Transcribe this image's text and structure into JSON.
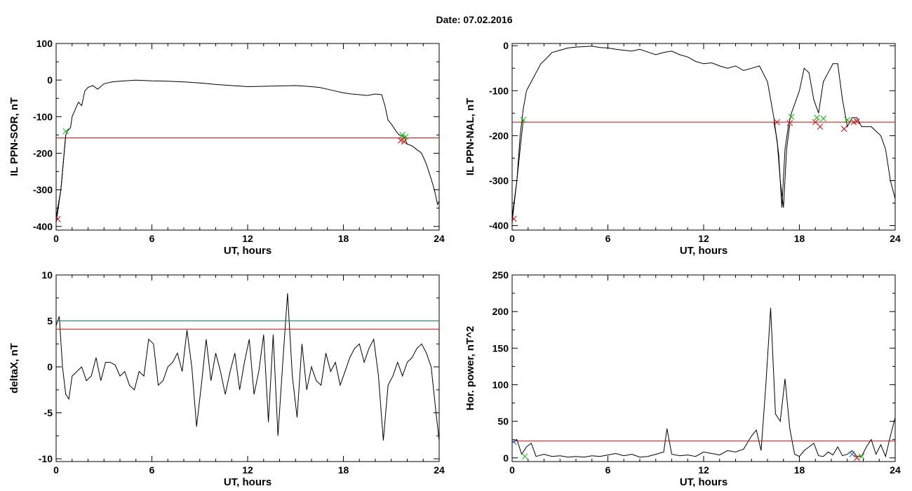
{
  "title": "Date:  07.02.2016",
  "chart_data": [
    {
      "type": "line",
      "xlabel": "UT, hours",
      "ylabel": "IL PPN-SOR, nT",
      "xlim": [
        0,
        24
      ],
      "ylim": [
        -410,
        100
      ],
      "xticks": [
        0,
        6,
        12,
        18,
        24
      ],
      "yticks": [
        100,
        0,
        -100,
        -200,
        -300,
        -400
      ],
      "xtick_labels": [
        "0",
        "6",
        "12",
        "18",
        "24"
      ],
      "ytick_labels": [
        "100",
        "0",
        "-100",
        "-200",
        "-300",
        "-400"
      ],
      "hlines": [
        {
          "y": -158,
          "color": "#e00000"
        }
      ],
      "series": [
        {
          "color": "#000000",
          "x": [
            0,
            0.3,
            0.5,
            0.6,
            0.7,
            0.9,
            1.0,
            1.2,
            1.4,
            1.6,
            1.8,
            2.0,
            2.3,
            2.6,
            3.0,
            3.5,
            4.0,
            5.0,
            6.0,
            7.0,
            8.0,
            9.0,
            10.0,
            11.0,
            12.0,
            13.0,
            14.0,
            15.0,
            16.0,
            16.5,
            17.0,
            17.5,
            18.0,
            18.5,
            19.0,
            19.5,
            20.0,
            20.4,
            20.6,
            20.8,
            21.0,
            21.3,
            21.5,
            21.8,
            22.0,
            22.3,
            22.6,
            22.9,
            23.2,
            23.5,
            23.7,
            23.9,
            24.0
          ],
          "y": [
            -375,
            -300,
            -200,
            -150,
            -140,
            -130,
            -100,
            -80,
            -60,
            -70,
            -30,
            -20,
            -15,
            -25,
            -10,
            -5,
            -3,
            0,
            -2,
            -3,
            -5,
            -8,
            -12,
            -15,
            -18,
            -17,
            -16,
            -15,
            -18,
            -20,
            -25,
            -30,
            -35,
            -38,
            -40,
            -42,
            -38,
            -40,
            -70,
            -110,
            -120,
            -140,
            -150,
            -155,
            -175,
            -180,
            -190,
            -200,
            -230,
            -270,
            -300,
            -340,
            -330
          ]
        },
        {
          "color": "#1060e0",
          "x": [
            0,
            0.1,
            0.2,
            0.3,
            0.4,
            0.5,
            0.6
          ],
          "y": [
            -390,
            -360,
            -330,
            -300,
            -250,
            -200,
            -150
          ]
        }
      ],
      "markers": [
        {
          "x": 0.1,
          "y": -380,
          "color": "#e00000"
        },
        {
          "x": 0.6,
          "y": -140,
          "color": "#00c000"
        },
        {
          "x": 21.6,
          "y": -165,
          "color": "#e00000"
        },
        {
          "x": 21.8,
          "y": -168,
          "color": "#e00000"
        },
        {
          "x": 21.7,
          "y": -150,
          "color": "#00c000"
        },
        {
          "x": 21.9,
          "y": -155,
          "color": "#00c000"
        }
      ]
    },
    {
      "type": "line",
      "xlabel": "UT, hours",
      "ylabel": "IL PPN-NAL, nT",
      "xlim": [
        0,
        24
      ],
      "ylim": [
        -410,
        5
      ],
      "xticks": [
        0,
        6,
        12,
        18,
        24
      ],
      "yticks": [
        0,
        -100,
        -200,
        -300,
        -400
      ],
      "xtick_labels": [
        "0",
        "6",
        "12",
        "18",
        "24"
      ],
      "ytick_labels": [
        "0",
        "-100",
        "-200",
        "-300",
        "-400"
      ],
      "hlines": [
        {
          "y": -170,
          "color": "#e00000"
        }
      ],
      "series": [
        {
          "color": "#000000",
          "x": [
            0,
            0.3,
            0.5,
            0.7,
            0.9,
            1.2,
            1.5,
            1.8,
            2.1,
            2.5,
            3.0,
            3.5,
            4.0,
            4.5,
            5.0,
            5.5,
            6.0,
            6.5,
            7.0,
            7.5,
            8.0,
            8.5,
            9.0,
            9.5,
            10.0,
            10.5,
            11.0,
            11.5,
            12.0,
            12.5,
            13.0,
            13.5,
            14.0,
            14.5,
            15.0,
            15.5,
            16.0,
            16.4,
            16.7,
            16.9,
            17.1,
            17.3,
            17.5,
            17.8,
            18.0,
            18.3,
            18.6,
            18.9,
            19.2,
            19.5,
            19.8,
            20.1,
            20.4,
            20.7,
            21.0,
            21.3,
            21.6,
            21.9,
            22.2,
            22.5,
            22.8,
            23.1,
            23.4,
            23.7,
            24.0
          ],
          "y": [
            -380,
            -300,
            -200,
            -140,
            -100,
            -80,
            -60,
            -40,
            -30,
            -15,
            -10,
            -5,
            -3,
            -2,
            -1,
            -4,
            -5,
            -8,
            -10,
            -12,
            -8,
            -14,
            -20,
            -15,
            -12,
            -20,
            -25,
            -35,
            -40,
            -38,
            -45,
            -50,
            -45,
            -55,
            -50,
            -45,
            -80,
            -160,
            -240,
            -360,
            -230,
            -180,
            -150,
            -120,
            -100,
            -50,
            -60,
            -120,
            -150,
            -80,
            -60,
            -40,
            -40,
            -120,
            -180,
            -160,
            -160,
            -180,
            -180,
            -180,
            -190,
            -200,
            -230,
            -300,
            -340
          ]
        },
        {
          "color": "#1060e0",
          "x": [
            0,
            0.1,
            0.3,
            0.5,
            0.7
          ],
          "y": [
            -395,
            -360,
            -300,
            -230,
            -165
          ]
        },
        {
          "color": "#1060e0",
          "x": [
            16.4,
            16.6,
            16.8,
            17.0,
            17.2,
            17.4
          ],
          "y": [
            -170,
            -210,
            -300,
            -360,
            -230,
            -175
          ]
        }
      ],
      "markers": [
        {
          "x": 0.1,
          "y": -385,
          "color": "#e00000"
        },
        {
          "x": 0.7,
          "y": -165,
          "color": "#00c000"
        },
        {
          "x": 16.6,
          "y": -170,
          "color": "#e00000"
        },
        {
          "x": 17.4,
          "y": -172,
          "color": "#e00000"
        },
        {
          "x": 17.5,
          "y": -158,
          "color": "#00c000"
        },
        {
          "x": 19.0,
          "y": -170,
          "color": "#e00000"
        },
        {
          "x": 19.3,
          "y": -180,
          "color": "#e00000"
        },
        {
          "x": 19.1,
          "y": -160,
          "color": "#00c000"
        },
        {
          "x": 19.5,
          "y": -162,
          "color": "#00c000"
        },
        {
          "x": 20.8,
          "y": -185,
          "color": "#e00000"
        },
        {
          "x": 21.0,
          "y": -165,
          "color": "#00c000"
        },
        {
          "x": 21.4,
          "y": -170,
          "color": "#e00000"
        },
        {
          "x": 21.6,
          "y": -168,
          "color": "#e00000"
        }
      ]
    },
    {
      "type": "line",
      "xlabel": "UT, hours",
      "ylabel": "deltaX, nT",
      "xlim": [
        0,
        24
      ],
      "ylim": [
        -10.3,
        10
      ],
      "xticks": [
        0,
        6,
        12,
        18,
        24
      ],
      "yticks": [
        10,
        5,
        0,
        -5,
        -10
      ],
      "xtick_labels": [
        "0",
        "6",
        "12",
        "18",
        "24"
      ],
      "ytick_labels": [
        "10",
        "5",
        "0",
        "-5",
        "-10"
      ],
      "hlines": [
        {
          "y": 5.0,
          "color": "#008080"
        },
        {
          "y": 4.1,
          "color": "#e00000"
        }
      ],
      "series": [
        {
          "color": "#000000",
          "x": [
            0,
            0.2,
            0.4,
            0.6,
            0.8,
            1.0,
            1.3,
            1.6,
            1.9,
            2.2,
            2.5,
            2.8,
            3.1,
            3.4,
            3.7,
            4.0,
            4.3,
            4.6,
            4.9,
            5.2,
            5.5,
            5.8,
            6.1,
            6.4,
            6.7,
            7.0,
            7.3,
            7.6,
            7.9,
            8.2,
            8.5,
            8.8,
            9.1,
            9.4,
            9.7,
            10.0,
            10.3,
            10.6,
            10.9,
            11.2,
            11.5,
            11.8,
            12.1,
            12.4,
            12.7,
            13.0,
            13.3,
            13.6,
            13.9,
            14.2,
            14.5,
            14.8,
            15.1,
            15.4,
            15.7,
            16.0,
            16.3,
            16.6,
            16.9,
            17.2,
            17.5,
            17.8,
            18.1,
            18.4,
            18.7,
            19.0,
            19.3,
            19.6,
            19.9,
            20.2,
            20.5,
            20.8,
            21.1,
            21.4,
            21.7,
            22.0,
            22.3,
            22.6,
            22.9,
            23.2,
            23.5,
            23.8,
            24.0
          ],
          "y": [
            4.5,
            5.5,
            0.0,
            -3.0,
            -3.5,
            -1.0,
            -0.5,
            0.0,
            -1.5,
            -1.0,
            1.0,
            -1.5,
            0.5,
            0.5,
            0.2,
            -1.0,
            -0.5,
            -2.0,
            -2.5,
            -0.5,
            -1.0,
            3.0,
            2.5,
            -2.0,
            -1.5,
            0.0,
            0.5,
            1.5,
            -0.5,
            4.0,
            0.0,
            -6.5,
            -2.0,
            3.0,
            -1.5,
            1.5,
            -0.5,
            -3.0,
            -0.5,
            1.5,
            -2.5,
            0.5,
            3.0,
            -3.0,
            -0.5,
            3.5,
            -6.0,
            3.5,
            -7.5,
            0.5,
            8.0,
            -1.0,
            -5.5,
            2.5,
            -2.5,
            0.0,
            -1.5,
            -2.0,
            1.5,
            -0.5,
            0.5,
            -2.0,
            -0.5,
            1.0,
            2.0,
            2.5,
            0.5,
            2.0,
            3.0,
            -1.0,
            -8.0,
            -2.0,
            -1.0,
            0.5,
            -1.0,
            0.5,
            1.0,
            2.0,
            2.5,
            1.5,
            0.0,
            -5.0,
            -8.0
          ]
        }
      ],
      "markers": []
    },
    {
      "type": "line",
      "xlabel": "UT, hours",
      "ylabel": "Hor. power, nT^2",
      "xlim": [
        0,
        24
      ],
      "ylim": [
        -5,
        250
      ],
      "xticks": [
        0,
        6,
        12,
        18,
        24
      ],
      "yticks": [
        250,
        200,
        150,
        100,
        50,
        0
      ],
      "xtick_labels": [
        "0",
        "6",
        "12",
        "18",
        "24"
      ],
      "ytick_labels": [
        "250",
        "200",
        "150",
        "100",
        "50",
        "0"
      ],
      "hlines": [
        {
          "y": 23,
          "color": "#e00000"
        }
      ],
      "series": [
        {
          "color": "#000000",
          "x": [
            0,
            0.3,
            0.6,
            0.9,
            1.2,
            1.5,
            2.0,
            2.5,
            3.0,
            3.5,
            4.0,
            4.5,
            5.0,
            5.5,
            6.0,
            6.5,
            7.0,
            7.5,
            8.0,
            8.5,
            9.0,
            9.5,
            9.7,
            10.0,
            10.5,
            11.0,
            11.5,
            12.0,
            12.5,
            13.0,
            13.5,
            14.0,
            14.5,
            15.0,
            15.3,
            15.6,
            15.9,
            16.2,
            16.5,
            16.8,
            17.1,
            17.4,
            17.7,
            18.0,
            18.3,
            18.6,
            18.9,
            19.2,
            19.5,
            19.8,
            20.1,
            20.4,
            20.7,
            21.0,
            21.3,
            21.6,
            21.9,
            22.2,
            22.5,
            22.8,
            23.1,
            23.4,
            23.7,
            24.0
          ],
          "y": [
            20,
            25,
            5,
            15,
            20,
            2,
            5,
            2,
            3,
            1,
            2,
            1,
            3,
            2,
            4,
            6,
            3,
            5,
            1,
            2,
            5,
            8,
            40,
            5,
            3,
            4,
            2,
            8,
            6,
            4,
            10,
            8,
            12,
            30,
            38,
            10,
            100,
            205,
            60,
            50,
            108,
            40,
            5,
            2,
            10,
            15,
            20,
            3,
            2,
            8,
            4,
            15,
            3,
            5,
            10,
            2,
            2,
            15,
            25,
            5,
            18,
            2,
            30,
            55
          ]
        }
      ],
      "markers": [
        {
          "x": 0.1,
          "y": 22,
          "color": "#1060e0"
        },
        {
          "x": 0.8,
          "y": 2,
          "color": "#00c000"
        },
        {
          "x": 21.3,
          "y": 5,
          "color": "#1060e0"
        },
        {
          "x": 21.6,
          "y": 0,
          "color": "#e00000"
        },
        {
          "x": 21.9,
          "y": 2,
          "color": "#00c000"
        }
      ]
    }
  ]
}
